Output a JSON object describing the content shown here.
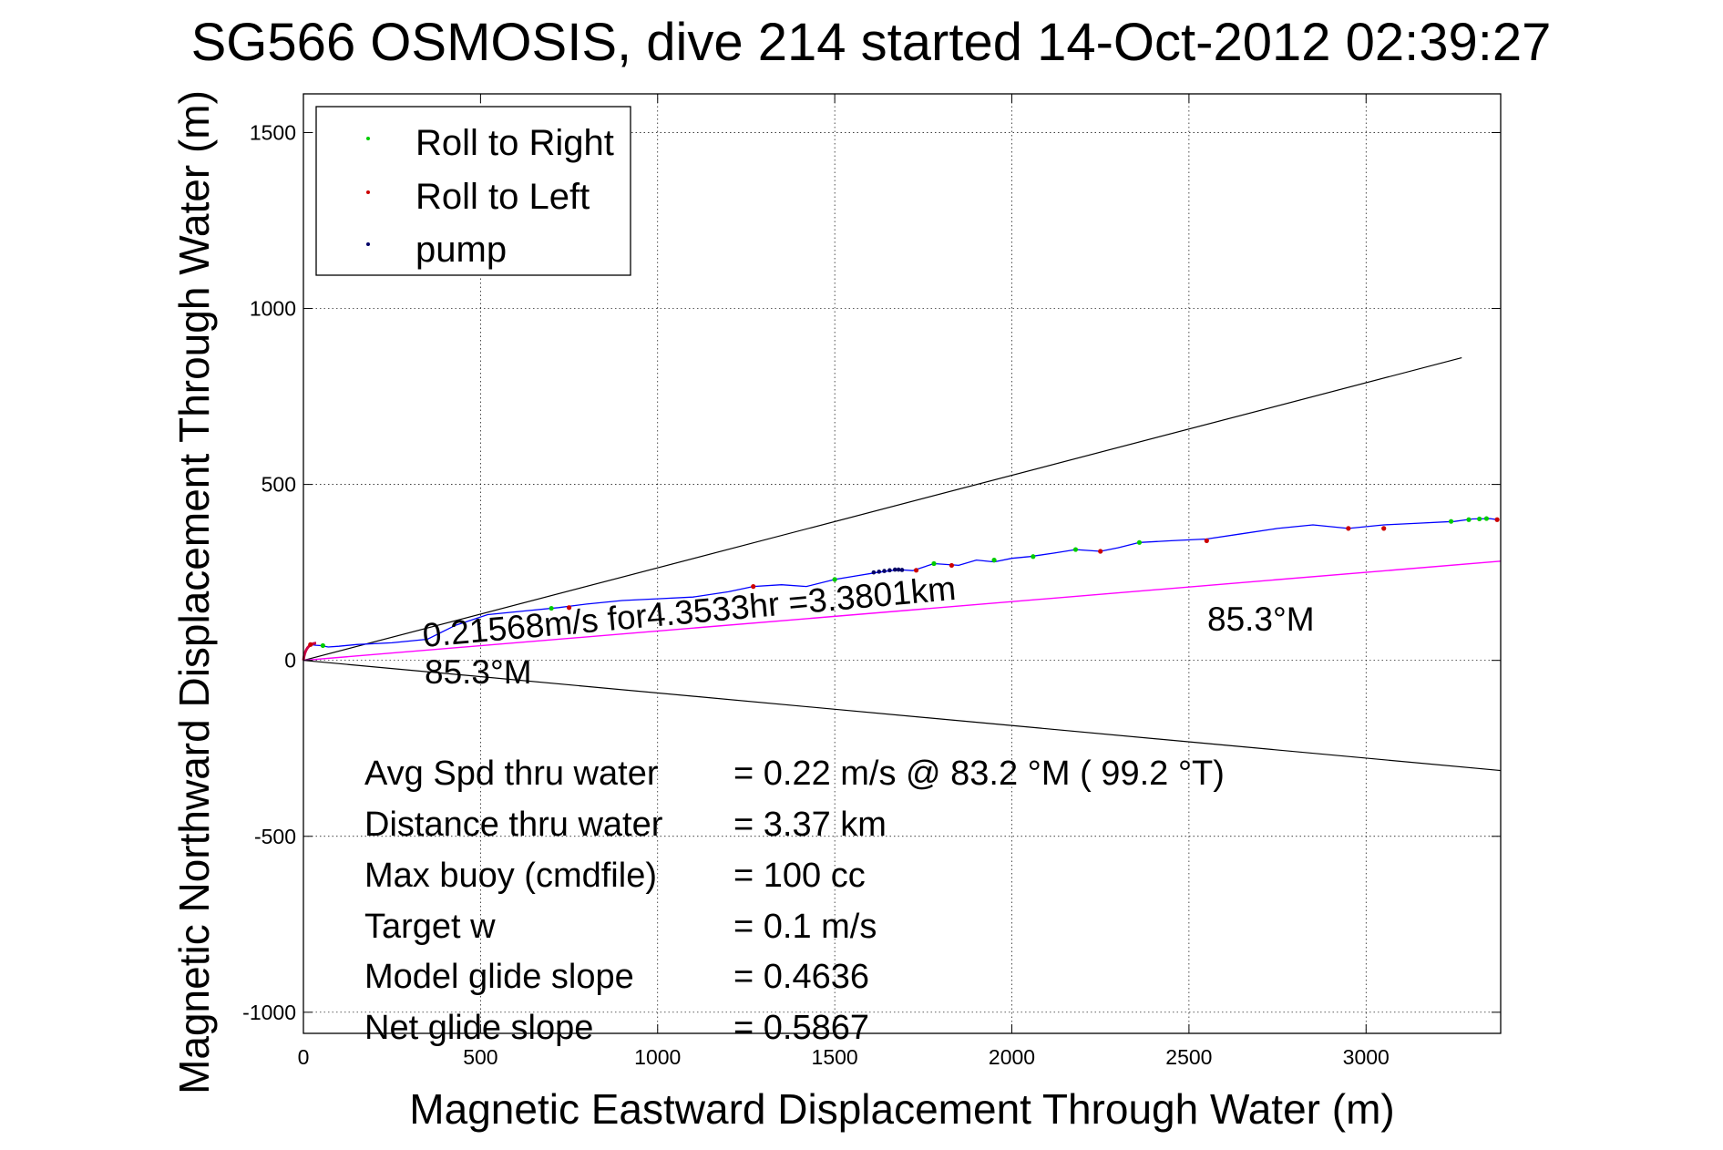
{
  "chart_data": {
    "type": "line",
    "title": "SG566 OSMOSIS, dive 214 started 14-Oct-2012 02:39:27",
    "xlabel": "Magnetic Eastward Displacement Through Water (m)",
    "ylabel": "Magnetic Northward Displacement Through Water (m)",
    "xlim": [
      0,
      3380
    ],
    "ylim": [
      -1060,
      1610
    ],
    "xticks": [
      0,
      500,
      1000,
      1500,
      2000,
      2500,
      3000
    ],
    "yticks": [
      -1000,
      -500,
      0,
      500,
      1000,
      1500
    ],
    "xtick_labels": [
      "0",
      "500",
      "1000",
      "1500",
      "2000",
      "2500",
      "3000"
    ],
    "ytick_labels": [
      "-1000",
      "-500",
      "0",
      "500",
      "1000",
      "1500"
    ],
    "grid": true,
    "legend_position": "top-left",
    "colors": {
      "track": "#0000ff",
      "roll_right": "#00cc00",
      "roll_left": "#cc0000",
      "pump": "#000066",
      "heading_line": "#ff00ff",
      "envelope": "#000000"
    },
    "legend": [
      {
        "label": "Roll to Right",
        "color": "#00cc00"
      },
      {
        "label": "Roll to Left",
        "color": "#cc0000"
      },
      {
        "label": "pump",
        "color": "#000066"
      }
    ],
    "track": {
      "x": [
        0,
        10,
        20,
        35,
        50,
        70,
        100,
        150,
        250,
        350,
        430,
        520,
        620,
        720,
        800,
        900,
        1000,
        1100,
        1200,
        1270,
        1350,
        1420,
        1500,
        1560,
        1620,
        1680,
        1720,
        1780,
        1850,
        1900,
        1950,
        2000,
        2050,
        2120,
        2180,
        2250,
        2300,
        2360,
        2450,
        2550,
        2650,
        2750,
        2850,
        2950,
        3050,
        3150,
        3250,
        3300,
        3350,
        3370
      ],
      "y": [
        0,
        35,
        45,
        43,
        42,
        38,
        40,
        45,
        50,
        60,
        100,
        130,
        140,
        150,
        160,
        170,
        175,
        180,
        195,
        210,
        215,
        210,
        230,
        240,
        250,
        258,
        255,
        275,
        270,
        285,
        280,
        290,
        295,
        305,
        315,
        310,
        320,
        335,
        340,
        345,
        360,
        375,
        385,
        375,
        385,
        390,
        395,
        402,
        403,
        400
      ]
    },
    "roll_right_x": [
      55,
      700,
      1500,
      1780,
      1950,
      2060,
      2180,
      2360,
      3240,
      3290,
      3320,
      3340
    ],
    "roll_right_y": [
      42,
      148,
      230,
      275,
      285,
      295,
      315,
      335,
      395,
      400,
      402,
      403
    ],
    "roll_left_x": [
      20,
      750,
      1270,
      1730,
      1830,
      2250,
      2550,
      2950,
      3050,
      3370
    ],
    "roll_left_y": [
      45,
      150,
      210,
      256,
      270,
      310,
      340,
      375,
      375,
      400
    ],
    "pump_x": [
      1610,
      1625,
      1640,
      1655,
      1670,
      1680,
      1690
    ],
    "pump_y": [
      250,
      252,
      254,
      256,
      258,
      258,
      257
    ],
    "heading_line": {
      "x": [
        0,
        3380
      ],
      "y": [
        0,
        282
      ]
    },
    "envelope_upper": {
      "x": [
        0,
        3270
      ],
      "y": [
        0,
        860
      ]
    },
    "envelope_lower": {
      "x": [
        0,
        3380
      ],
      "y": [
        0,
        -313
      ]
    },
    "annotations": {
      "speed": "0.21568m/s for4.3533hr =3.3801km",
      "heading_start": "85.3°M",
      "heading_end": "85.3°M"
    },
    "stats": [
      {
        "label": "Avg Spd thru water",
        "value": "=  0.22 m/s @  83.2 °M ( 99.2 °T)"
      },
      {
        "label": "Distance thru water",
        "value": "=  3.37 km"
      },
      {
        "label": "Max buoy (cmdfile)",
        "value": "= 100 cc"
      },
      {
        "label": "Target w",
        "value": "= 0.1 m/s"
      },
      {
        "label": "Model glide slope",
        "value": "= 0.4636"
      },
      {
        "label": "Net glide slope",
        "value": "= 0.5867"
      }
    ]
  }
}
